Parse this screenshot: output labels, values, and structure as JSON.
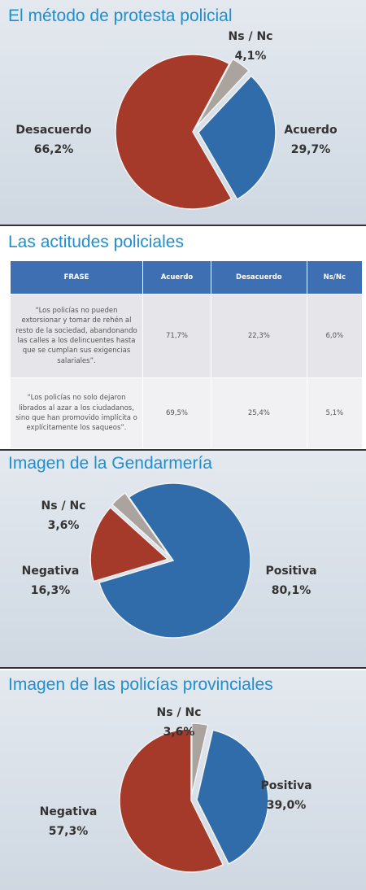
{
  "chart_data": [
    {
      "type": "pie",
      "title": "El método de protesta policial",
      "categories": [
        "Acuerdo",
        "Desacuerdo",
        "Ns / Nc"
      ],
      "values": [
        29.7,
        66.2,
        4.1
      ],
      "value_labels": [
        "29,7%",
        "66,2%",
        "4,1%"
      ],
      "colors": [
        "#2f6ca9",
        "#a53a2b",
        "#aaa39e"
      ]
    },
    {
      "type": "pie",
      "title": "Imagen de la Gendarmería",
      "categories": [
        "Positiva",
        "Negativa",
        "Ns / Nc"
      ],
      "values": [
        80.1,
        16.3,
        3.6
      ],
      "value_labels": [
        "80,1%",
        "16,3%",
        "3,6%"
      ],
      "colors": [
        "#2f6ca9",
        "#a53a2b",
        "#aaa39e"
      ]
    },
    {
      "type": "pie",
      "title": "Imagen de las policías provinciales",
      "categories": [
        "Positiva",
        "Negativa",
        "Ns / Nc"
      ],
      "values": [
        39.0,
        57.3,
        3.6
      ],
      "value_labels": [
        "39,0%",
        "57,3%",
        "3,6%"
      ],
      "colors": [
        "#2f6ca9",
        "#a53a2b",
        "#aaa39e"
      ]
    }
  ],
  "table": {
    "title": "Las actitudes policiales",
    "header": [
      "FRASE",
      "Acuerdo",
      "Desacuerdo",
      "Ns/Nc"
    ],
    "rows": [
      [
        "“Los policías no pueden extorsionar y tomar de rehén al resto de la sociedad, abandonando las calles a los delincuentes hasta que se cumplan sus exigencias salariales”.",
        "71,7%",
        "22,3%",
        "6,0%"
      ],
      [
        "“Los policías no solo dejaron librados al azar a los ciudadanos, sino que han promovido implícita o explícitamente los saqueos”.",
        "69,5%",
        "25,4%",
        "5,1%"
      ]
    ]
  }
}
